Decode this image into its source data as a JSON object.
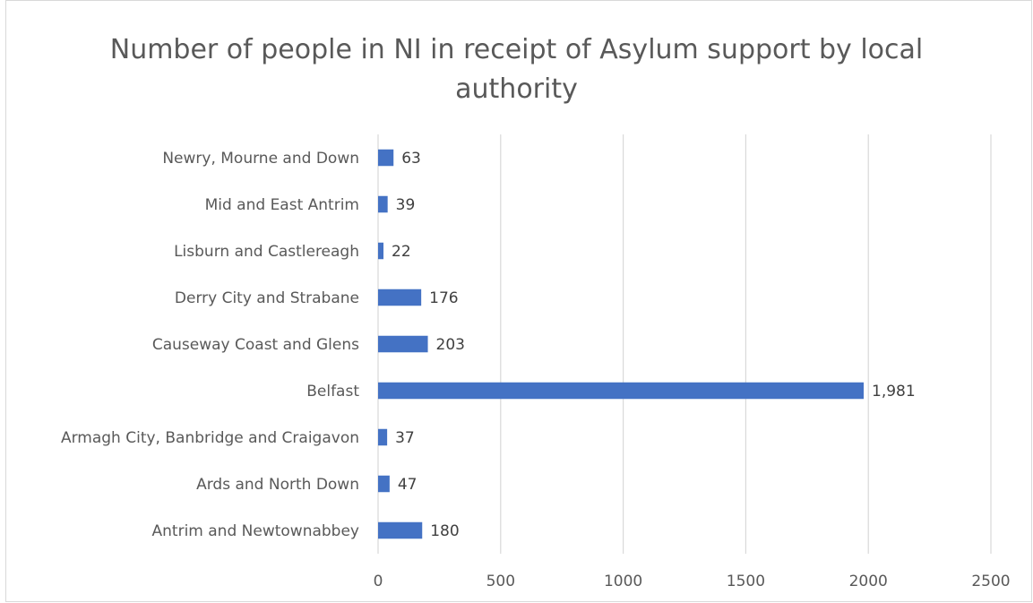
{
  "chart_data": {
    "type": "bar",
    "orientation": "horizontal",
    "title": "Number of people in NI in receipt of Asylum support by local authority",
    "xlabel": "",
    "ylabel": "",
    "categories": [
      "Antrim and Newtownabbey",
      "Ards and North Down",
      "Armagh City, Banbridge and Craigavon",
      "Belfast",
      "Causeway Coast and Glens",
      "Derry City and Strabane",
      "Lisburn and Castlereagh",
      "Mid and East Antrim",
      "Newry, Mourne and Down"
    ],
    "values": [
      180,
      47,
      37,
      1981,
      203,
      176,
      22,
      39,
      63
    ],
    "data_labels": [
      "180",
      "47",
      "37",
      "1,981",
      "203",
      "176",
      "22",
      "39",
      "63"
    ],
    "xlim": [
      0,
      2500
    ],
    "x_ticks": [
      0,
      500,
      1000,
      1500,
      2000,
      2500
    ],
    "x_tick_labels": [
      "0",
      "500",
      "1000",
      "1500",
      "2000",
      "2500"
    ],
    "grid": "vertical",
    "legend": "none",
    "bar_color": "#4472C4",
    "grid_color": "#d9d9d9"
  }
}
